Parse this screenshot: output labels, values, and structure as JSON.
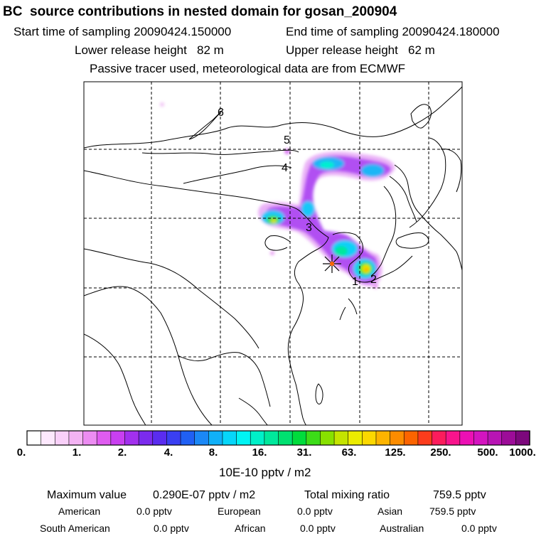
{
  "header": {
    "title": "BC  source contributions in nested domain for gosan_200904",
    "start_label": "Start time of sampling 20090424.150000",
    "end_label": "End time of sampling 20090424.180000",
    "lower_label": "Lower release height   82 m",
    "upper_label": "Upper release height   62 m",
    "tracer_note": "Passive tracer used, meteorological data are from ECMWF"
  },
  "map": {
    "labels": [
      "6",
      "5",
      "4",
      "3",
      "1",
      "2"
    ],
    "release_marker": "release-star",
    "colors": {
      "land": "#ffffff",
      "coast": "#000000",
      "grid": "#000000"
    }
  },
  "colorbar": {
    "tick_labels": [
      "0.",
      "1.",
      "2.",
      "4.",
      "8.",
      "16.",
      "31.",
      "63.",
      "125.",
      "250.",
      "500.",
      "1000."
    ],
    "units": "10E-10 pptv / m2",
    "colors": [
      "#ffffff",
      "#fde8fd",
      "#f9d0f9",
      "#f3b3f3",
      "#ec8cf2",
      "#df5cf0",
      "#c93ff0",
      "#a230ee",
      "#7b2bee",
      "#5a2cf0",
      "#3a3ff2",
      "#2060f4",
      "#1b88f6",
      "#10b0f8",
      "#06d6fa",
      "#00f4f4",
      "#00f0c8",
      "#00e89c",
      "#00e070",
      "#00dc3c",
      "#3cdc18",
      "#88e000",
      "#c4e400",
      "#ecec00",
      "#fcd800",
      "#fcb400",
      "#fc8c00",
      "#fc6400",
      "#fc3c1c",
      "#fc1c5c",
      "#f8148c",
      "#ec10b4",
      "#d414c0",
      "#b814b4",
      "#9c0c98",
      "#7c087c"
    ]
  },
  "summary": {
    "max_label": "Maximum value",
    "max_value": "0.290E-07 pptv / m2",
    "total_label": "Total mixing ratio",
    "total_value": "759.5 pptv",
    "regions": [
      {
        "name": "American",
        "value": "0.0 pptv"
      },
      {
        "name": "European",
        "value": "0.0 pptv"
      },
      {
        "name": "Asian",
        "value": "759.5 pptv"
      },
      {
        "name": "South American",
        "value": "0.0 pptv"
      },
      {
        "name": "African",
        "value": "0.0 pptv"
      },
      {
        "name": "Australian",
        "value": "0.0 pptv"
      }
    ]
  }
}
